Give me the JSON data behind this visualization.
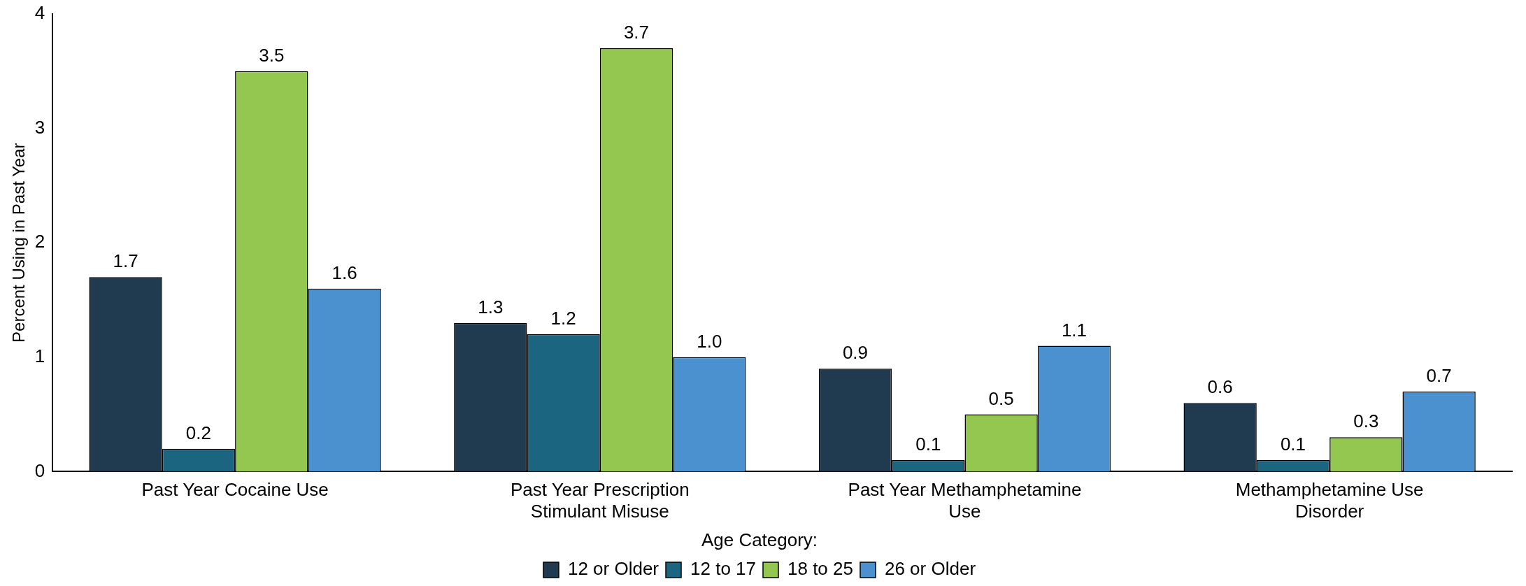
{
  "chart_data": {
    "type": "bar",
    "ylabel": "Percent Using in Past Year",
    "legend_title": "Age Category:",
    "legend": "bottom",
    "grid": false,
    "categories": [
      "Past Year Cocaine Use",
      "Past Year Prescription Stimulant Misuse",
      "Past Year Methamphetamine Use",
      "Methamphetamine Use Disorder"
    ],
    "ylim": [
      0,
      4
    ],
    "yticks": [
      0,
      1,
      2,
      3,
      4
    ],
    "series": [
      {
        "name": "12 or Older",
        "color": "#203a4f",
        "values": [
          1.7,
          1.3,
          0.9,
          0.6
        ],
        "value_labels": [
          "1.7",
          "1.3",
          "0.9",
          "0.6"
        ]
      },
      {
        "name": "12 to 17",
        "color": "#1c6580",
        "values": [
          0.2,
          1.2,
          0.1,
          0.1
        ],
        "value_labels": [
          "0.2",
          "1.2",
          "0.1",
          "0.1"
        ]
      },
      {
        "name": "18 to 25",
        "color": "#93c74f",
        "values": [
          3.5,
          3.7,
          0.5,
          0.3
        ],
        "value_labels": [
          "3.5",
          "3.7",
          "0.5",
          "0.3"
        ]
      },
      {
        "name": "26 or Older",
        "color": "#4b91cf",
        "values": [
          1.6,
          1.0,
          1.1,
          0.7
        ],
        "value_labels": [
          "1.6",
          "1.0",
          "1.1",
          "0.7"
        ]
      }
    ]
  }
}
